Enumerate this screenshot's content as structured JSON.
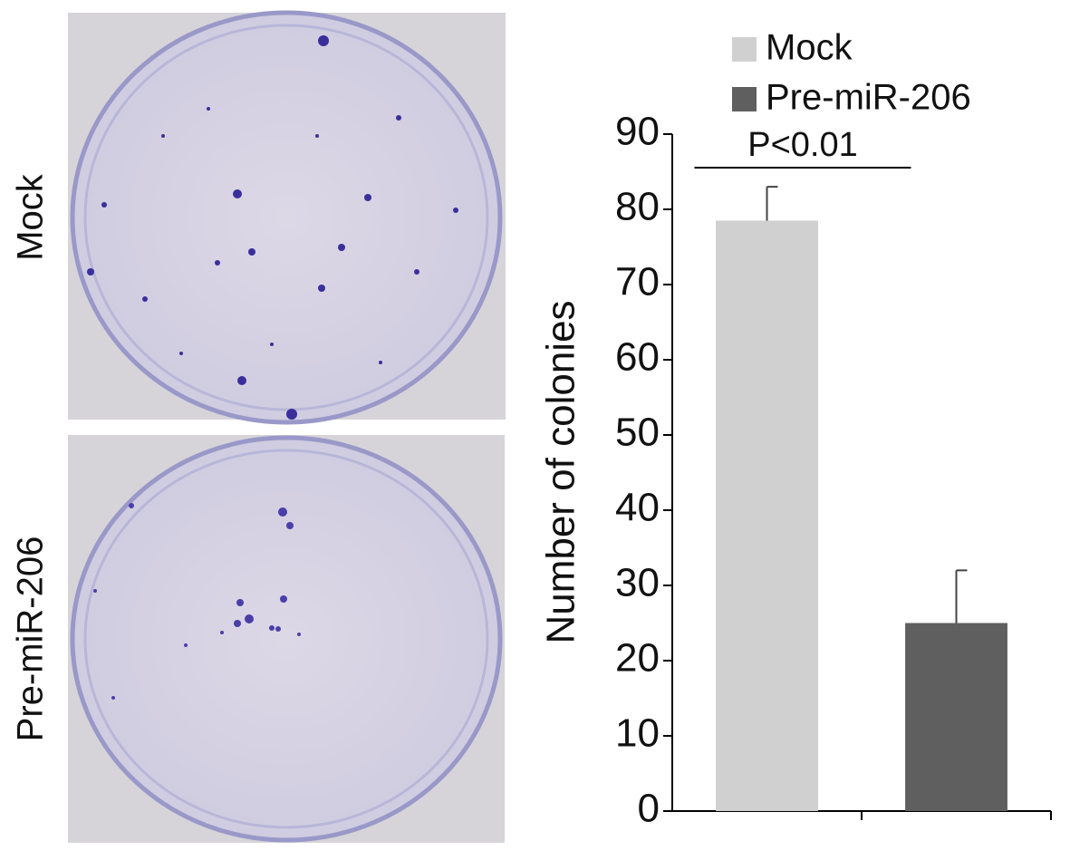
{
  "panel_labels": [
    "Mock",
    "Pre-miR-206"
  ],
  "chart_data": {
    "type": "bar",
    "y_label": "Number of colonies",
    "annotation": "P<0.01",
    "categories": [
      null,
      null
    ],
    "series": [
      {
        "name": "Mock",
        "color": "#d0d0d0",
        "values": [
          78.5,
          null
        ],
        "errors": [
          4.5,
          null
        ]
      },
      {
        "name": "Pre-miR-206",
        "color": "#5f5f5f",
        "values": [
          null,
          25
        ],
        "errors": [
          null,
          7
        ]
      }
    ],
    "ylim": [
      0,
      90
    ],
    "yticks": [
      0,
      10,
      20,
      30,
      40,
      50,
      60,
      70,
      80,
      90
    ],
    "legend": "top"
  }
}
